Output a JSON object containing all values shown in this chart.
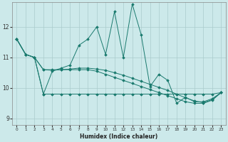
{
  "xlabel": "Humidex (Indice chaleur)",
  "bg_color": "#cce9ea",
  "line_color": "#1a7a6e",
  "grid_color": "#aacccc",
  "xlim": [
    -0.5,
    23.5
  ],
  "ylim": [
    8.8,
    12.8
  ],
  "yticks": [
    9,
    10,
    11,
    12
  ],
  "xticks": [
    0,
    1,
    2,
    3,
    4,
    5,
    6,
    7,
    8,
    9,
    10,
    11,
    12,
    13,
    14,
    15,
    16,
    17,
    18,
    19,
    20,
    21,
    22,
    23
  ],
  "series": [
    [
      11.6,
      11.1,
      11.0,
      9.8,
      10.55,
      10.65,
      10.75,
      11.4,
      11.6,
      12.0,
      11.1,
      12.5,
      11.0,
      12.75,
      11.75,
      10.05,
      10.45,
      10.25,
      9.5,
      9.7,
      9.55,
      9.55,
      9.65,
      9.85
    ],
    [
      11.6,
      11.1,
      11.0,
      9.8,
      9.8,
      9.8,
      9.8,
      9.8,
      9.8,
      9.8,
      9.8,
      9.8,
      9.8,
      9.8,
      9.8,
      9.8,
      9.8,
      9.8,
      9.8,
      9.8,
      9.8,
      9.8,
      9.8,
      9.85
    ],
    [
      11.6,
      11.1,
      11.0,
      10.6,
      10.6,
      10.6,
      10.6,
      10.6,
      10.6,
      10.55,
      10.45,
      10.35,
      10.25,
      10.15,
      10.05,
      9.95,
      9.85,
      9.75,
      9.65,
      9.55,
      9.5,
      9.5,
      9.6,
      9.85
    ],
    [
      11.6,
      11.1,
      11.0,
      10.6,
      10.58,
      10.6,
      10.62,
      10.65,
      10.65,
      10.62,
      10.58,
      10.5,
      10.42,
      10.32,
      10.22,
      10.12,
      10.02,
      9.92,
      9.8,
      9.68,
      9.58,
      9.52,
      9.62,
      9.85
    ]
  ]
}
